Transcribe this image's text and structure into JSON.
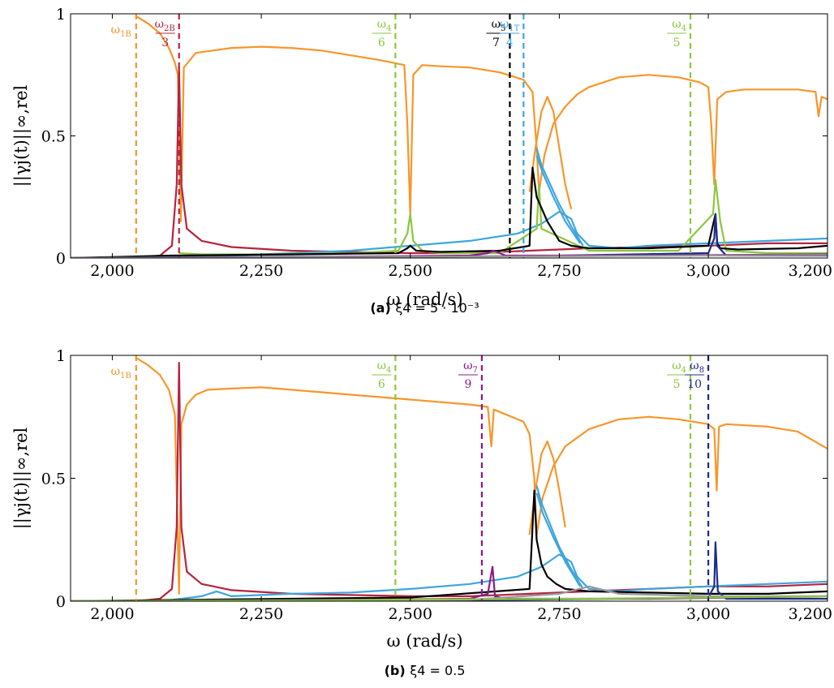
{
  "chart_data": [
    {
      "type": "line",
      "panel": "a",
      "caption_tag": "(a)",
      "caption_text": "ξ4 = 5 · 10⁻³",
      "xlabel": "ω (rad/s)",
      "ylabel": "||γj(t)||∞,rel",
      "xlim": [
        1930,
        3200
      ],
      "ylim": [
        0,
        1
      ],
      "xticks": [
        2000,
        2250,
        2500,
        2750,
        3000,
        3200
      ],
      "xtick_labels": [
        "2,000",
        "2,250",
        "2,500",
        "2,750",
        "3,000",
        "3,200"
      ],
      "yticks": [
        0,
        0.5,
        1
      ],
      "ytick_labels": [
        "0",
        "0.5",
        "1"
      ],
      "grid": false,
      "markers": [
        {
          "x": 2040,
          "color": "#f7962a",
          "num": "ω1B",
          "den": ""
        },
        {
          "x": 2112,
          "color": "#b5243f",
          "num": "ω2B",
          "den": "3"
        },
        {
          "x": 2475,
          "color": "#8cc63f",
          "num": "ω4",
          "den": "6"
        },
        {
          "x": 2667,
          "color": "#000000",
          "num": "ω5",
          "den": "7"
        },
        {
          "x": 2690,
          "color": "#3ea6dd",
          "num": "ω1T",
          "den": "4"
        },
        {
          "x": 2970,
          "color": "#8cc63f",
          "num": "ω4",
          "den": "5"
        }
      ],
      "series": [
        {
          "color": "#f7962a",
          "x": [
            2040,
            2060,
            2080,
            2095,
            2105,
            2110,
            2115,
            2120,
            2140,
            2200,
            2250,
            2300,
            2350,
            2400,
            2450,
            2480,
            2490,
            2495,
            2500
          ],
          "y": [
            0.99,
            0.96,
            0.92,
            0.86,
            0.8,
            0.75,
            0.15,
            0.78,
            0.84,
            0.86,
            0.865,
            0.86,
            0.85,
            0.83,
            0.81,
            0.795,
            0.79,
            0.55,
            0.18
          ]
        },
        {
          "color": "#f7962a",
          "x": [
            2500,
            2505,
            2520,
            2550,
            2600,
            2650,
            2690,
            2705,
            2712,
            2716
          ],
          "y": [
            0.18,
            0.75,
            0.79,
            0.785,
            0.78,
            0.76,
            0.73,
            0.68,
            0.45,
            0.27
          ]
        },
        {
          "color": "#f7962a",
          "x": [
            2716,
            2725,
            2740,
            2760,
            2780,
            2800,
            2850,
            2900,
            2950,
            2985,
            3000,
            3005,
            3010
          ],
          "y": [
            0.27,
            0.42,
            0.55,
            0.62,
            0.67,
            0.7,
            0.74,
            0.75,
            0.74,
            0.72,
            0.7,
            0.55,
            0.3
          ]
        },
        {
          "color": "#f7962a",
          "x": [
            3010,
            3015,
            3030,
            3060,
            3100,
            3150,
            3180,
            3185,
            3190,
            3200
          ],
          "y": [
            0.3,
            0.65,
            0.68,
            0.69,
            0.69,
            0.69,
            0.68,
            0.58,
            0.66,
            0.65
          ]
        },
        {
          "color": "#f7962a",
          "x": [
            2700,
            2710,
            2720,
            2730,
            2740,
            2750,
            2760,
            2770
          ],
          "y": [
            0.27,
            0.45,
            0.6,
            0.66,
            0.6,
            0.45,
            0.3,
            0.2
          ]
        },
        {
          "color": "#b5243f",
          "x": [
            2040,
            2080,
            2100,
            2108,
            2112,
            2116,
            2125,
            2150,
            2200,
            2300,
            2400,
            2500,
            2600,
            2700,
            2800,
            2900,
            3000,
            3100,
            3200
          ],
          "y": [
            0.0,
            0.01,
            0.05,
            0.3,
            0.78,
            0.3,
            0.12,
            0.07,
            0.045,
            0.03,
            0.025,
            0.02,
            0.02,
            0.03,
            0.04,
            0.045,
            0.05,
            0.06,
            0.06
          ]
        },
        {
          "color": "#3ea6dd",
          "x": [
            2100,
            2200,
            2300,
            2400,
            2500,
            2600,
            2680,
            2720,
            2750,
            2770,
            2780,
            2800,
            2850,
            2900,
            3000,
            3100,
            3200
          ],
          "y": [
            0.005,
            0.01,
            0.02,
            0.03,
            0.05,
            0.07,
            0.1,
            0.14,
            0.19,
            0.16,
            0.1,
            0.05,
            0.04,
            0.05,
            0.06,
            0.07,
            0.08
          ]
        },
        {
          "color": "#3ea6dd",
          "x": [
            2712,
            2720,
            2735,
            2750,
            2770,
            2790
          ],
          "y": [
            0.45,
            0.38,
            0.3,
            0.22,
            0.13,
            0.05
          ]
        },
        {
          "color": "#3ea6dd",
          "x": [
            2712,
            2722,
            2740,
            2760,
            2785
          ],
          "y": [
            0.42,
            0.35,
            0.25,
            0.15,
            0.06
          ]
        },
        {
          "color": "#8cc63f",
          "x": [
            2112,
            2150,
            2250,
            2400,
            2480,
            2495,
            2500,
            2505,
            2520,
            2550,
            2650,
            2712,
            2716,
            2720,
            2800,
            2950,
            3008,
            3012,
            3020,
            3030,
            3100,
            3200
          ],
          "y": [
            0.02,
            0.015,
            0.015,
            0.02,
            0.03,
            0.1,
            0.18,
            0.07,
            0.03,
            0.02,
            0.02,
            0.12,
            0.3,
            0.12,
            0.03,
            0.03,
            0.18,
            0.32,
            0.15,
            0.03,
            0.02,
            0.02
          ]
        },
        {
          "color": "#000000",
          "x": [
            1930,
            2100,
            2300,
            2480,
            2495,
            2500,
            2510,
            2550,
            2650,
            2700,
            2705,
            2712,
            2730,
            2750,
            2770,
            2800,
            2900,
            3000,
            3012,
            3015,
            3020,
            3050,
            3150,
            3200
          ],
          "y": [
            0.0,
            0.01,
            0.015,
            0.02,
            0.04,
            0.05,
            0.03,
            0.025,
            0.03,
            0.05,
            0.37,
            0.25,
            0.15,
            0.07,
            0.05,
            0.04,
            0.04,
            0.05,
            0.18,
            0.06,
            0.04,
            0.035,
            0.04,
            0.05
          ]
        },
        {
          "color": "#1f2b8a",
          "x": [
            1930,
            2100,
            2300,
            2500,
            2700,
            3000,
            3010,
            3012,
            3015,
            3030,
            3200
          ],
          "y": [
            0.0,
            0.003,
            0.005,
            0.006,
            0.008,
            0.02,
            0.08,
            0.18,
            0.05,
            0.01,
            0.01
          ]
        },
        {
          "color": "#8b1a8b",
          "x": [
            1930,
            2300,
            2600,
            2630,
            2640,
            2660,
            2900,
            3200
          ],
          "y": [
            0.0,
            0.004,
            0.01,
            0.02,
            0.03,
            0.01,
            0.01,
            0.015
          ]
        },
        {
          "color": "#999999",
          "x": [
            1930,
            2300,
            2600,
            2800,
            3000,
            3200
          ],
          "y": [
            0.0,
            0.003,
            0.006,
            0.008,
            0.01,
            0.012
          ]
        }
      ]
    },
    {
      "type": "line",
      "panel": "b",
      "caption_tag": "(b)",
      "caption_text": "ξ4 = 0.5",
      "xlabel": "ω (rad/s)",
      "ylabel": "||γj(t)||∞,rel",
      "xlim": [
        1930,
        3200
      ],
      "ylim": [
        0,
        1
      ],
      "xticks": [
        2000,
        2250,
        2500,
        2750,
        3000,
        3200
      ],
      "xtick_labels": [
        "2,000",
        "2,250",
        "2,500",
        "2,750",
        "3,000",
        "3,200"
      ],
      "yticks": [
        0,
        0.5,
        1
      ],
      "ytick_labels": [
        "0",
        "0.5",
        "1"
      ],
      "grid": false,
      "markers": [
        {
          "x": 2040,
          "color": "#f7962a",
          "num": "ω1B",
          "den": ""
        },
        {
          "x": 2475,
          "color": "#8cc63f",
          "num": "ω4",
          "den": "6"
        },
        {
          "x": 2620,
          "color": "#8b1a8b",
          "num": "ω7",
          "den": "9"
        },
        {
          "x": 2970,
          "color": "#8cc63f",
          "num": "ω4",
          "den": "5"
        },
        {
          "x": 3000,
          "color": "#1f2b8a",
          "num": "ω8",
          "den": "10"
        }
      ],
      "series": [
        {
          "color": "#f7962a",
          "x": [
            2040,
            2060,
            2080,
            2095,
            2105,
            2112,
            2116,
            2125,
            2140,
            2160,
            2200,
            2250,
            2300,
            2350,
            2400,
            2500,
            2600,
            2630,
            2636,
            2640,
            2650,
            2690,
            2700,
            2708,
            2712
          ],
          "y": [
            0.99,
            0.96,
            0.92,
            0.86,
            0.76,
            0.03,
            0.72,
            0.8,
            0.84,
            0.86,
            0.865,
            0.87,
            0.86,
            0.85,
            0.84,
            0.82,
            0.8,
            0.79,
            0.63,
            0.78,
            0.77,
            0.73,
            0.68,
            0.5,
            0.27
          ]
        },
        {
          "color": "#f7962a",
          "x": [
            2712,
            2722,
            2740,
            2760,
            2800,
            2850,
            2900,
            2950,
            3000,
            3010,
            3014,
            3018,
            3030,
            3100,
            3150,
            3200
          ],
          "y": [
            0.27,
            0.42,
            0.55,
            0.63,
            0.7,
            0.74,
            0.75,
            0.74,
            0.72,
            0.7,
            0.45,
            0.71,
            0.72,
            0.71,
            0.69,
            0.62
          ]
        },
        {
          "color": "#f7962a",
          "x": [
            2700,
            2710,
            2720,
            2730,
            2740,
            2750,
            2760
          ],
          "y": [
            0.27,
            0.45,
            0.6,
            0.65,
            0.58,
            0.45,
            0.3
          ]
        },
        {
          "color": "#b5243f",
          "x": [
            2040,
            2080,
            2100,
            2108,
            2112,
            2116,
            2125,
            2150,
            2200,
            2300,
            2400,
            2500,
            2600,
            2700,
            2800,
            2900,
            3000,
            3100,
            3200
          ],
          "y": [
            0.0,
            0.01,
            0.05,
            0.3,
            0.97,
            0.3,
            0.12,
            0.07,
            0.045,
            0.03,
            0.025,
            0.02,
            0.02,
            0.03,
            0.04,
            0.05,
            0.06,
            0.06,
            0.07
          ]
        },
        {
          "color": "#3ea6dd",
          "x": [
            2100,
            2150,
            2175,
            2200,
            2300,
            2400,
            2500,
            2600,
            2680,
            2720,
            2750,
            2770,
            2780,
            2800,
            2850,
            2900,
            3000,
            3100,
            3200
          ],
          "y": [
            0.005,
            0.02,
            0.04,
            0.02,
            0.03,
            0.035,
            0.05,
            0.07,
            0.1,
            0.14,
            0.19,
            0.16,
            0.1,
            0.05,
            0.04,
            0.05,
            0.06,
            0.07,
            0.08
          ]
        },
        {
          "color": "#3ea6dd",
          "x": [
            2712,
            2720,
            2735,
            2750,
            2770,
            2790
          ],
          "y": [
            0.47,
            0.4,
            0.31,
            0.22,
            0.13,
            0.05
          ]
        },
        {
          "color": "#3ea6dd",
          "x": [
            2712,
            2722,
            2740,
            2760,
            2785
          ],
          "y": [
            0.44,
            0.36,
            0.26,
            0.16,
            0.06
          ]
        },
        {
          "color": "#000000",
          "x": [
            1930,
            2100,
            2300,
            2500,
            2700,
            2708,
            2712,
            2720,
            2730,
            2745,
            2760,
            2800,
            2900,
            3000,
            3100,
            3200
          ],
          "y": [
            0.0,
            0.005,
            0.01,
            0.015,
            0.05,
            0.45,
            0.25,
            0.15,
            0.1,
            0.07,
            0.05,
            0.04,
            0.035,
            0.03,
            0.03,
            0.04
          ]
        },
        {
          "color": "#8b1a8b",
          "x": [
            1930,
            2300,
            2600,
            2630,
            2638,
            2642,
            2660,
            2900,
            3200
          ],
          "y": [
            0.0,
            0.004,
            0.01,
            0.03,
            0.14,
            0.02,
            0.01,
            0.01,
            0.02
          ]
        },
        {
          "color": "#1f2b8a",
          "x": [
            1930,
            2300,
            2700,
            3000,
            3010,
            3012,
            3016,
            3030,
            3200
          ],
          "y": [
            0.0,
            0.003,
            0.006,
            0.015,
            0.06,
            0.24,
            0.04,
            0.01,
            0.01
          ]
        },
        {
          "color": "#999999",
          "x": [
            1930,
            2300,
            2600,
            2750,
            2800,
            2850,
            3000,
            3200
          ],
          "y": [
            0.0,
            0.003,
            0.006,
            0.03,
            0.06,
            0.03,
            0.02,
            0.02
          ]
        },
        {
          "color": "#8cc63f",
          "x": [
            1930,
            2300,
            2600,
            2800,
            3000,
            3200
          ],
          "y": [
            0.0,
            0.004,
            0.008,
            0.01,
            0.015,
            0.02
          ]
        }
      ]
    }
  ]
}
